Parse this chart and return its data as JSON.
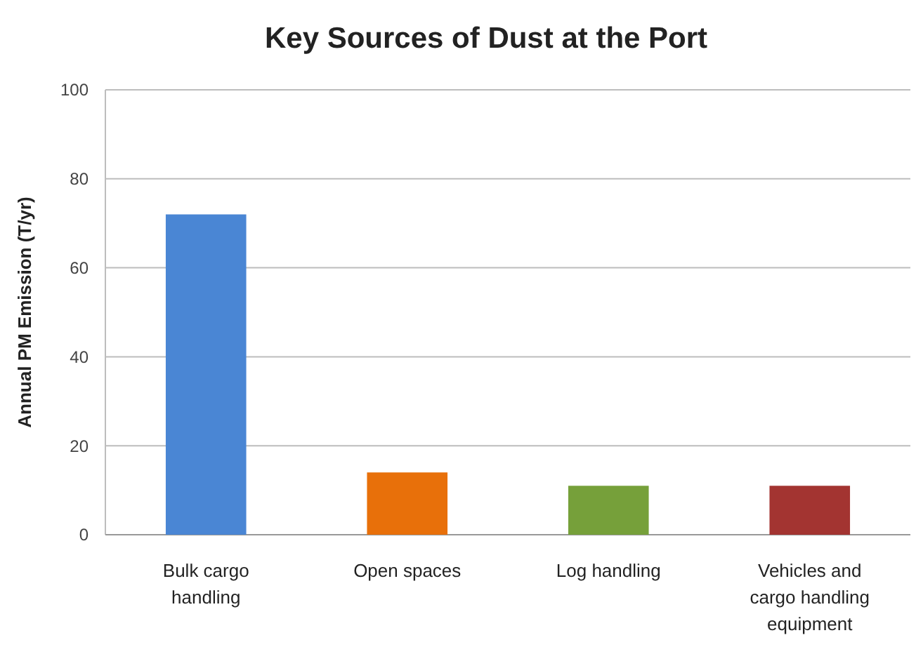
{
  "chart_data": {
    "type": "bar",
    "title": "Key Sources of Dust at the Port",
    "ylabel": "Annual PM Emission (T/yr)",
    "categories": [
      "Bulk cargo handling",
      "Open spaces",
      "Log handling",
      "Vehicles and cargo handling equipment"
    ],
    "values": [
      72,
      14,
      11,
      11
    ],
    "colors": [
      "#4a86d4",
      "#e8700a",
      "#76a03a",
      "#a33431"
    ],
    "ylim": [
      0,
      100
    ],
    "yticks": [
      0,
      20,
      40,
      60,
      80,
      100
    ],
    "grid": "y"
  }
}
